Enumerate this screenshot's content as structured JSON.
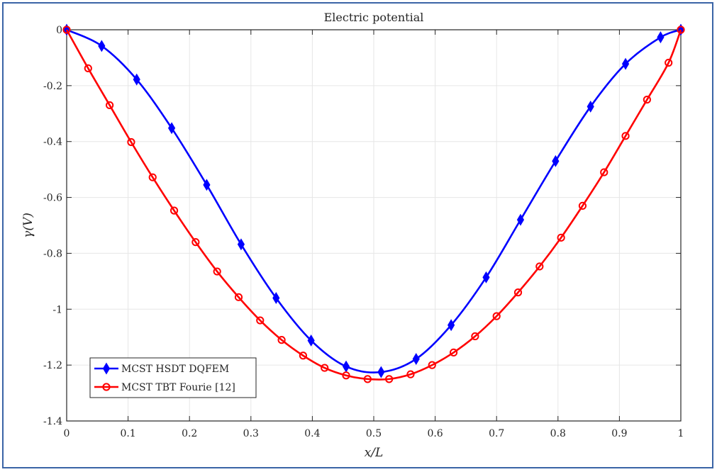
{
  "chart_data": {
    "type": "line",
    "title": "Electric potential",
    "xlabel": "x/L",
    "ylabel": "γ(V)",
    "xlim": [
      0,
      1
    ],
    "ylim": [
      -1.4,
      0
    ],
    "xticks": [
      "0",
      "0.1",
      "0.2",
      "0.3",
      "0.4",
      "0.5",
      "0.6",
      "0.7",
      "0.8",
      "0.9",
      "1"
    ],
    "yticks": [
      "0",
      "-0.2",
      "-0.4",
      "-0.6",
      "-0.8",
      "-1",
      "-1.2",
      "-1.4"
    ],
    "grid": true,
    "legend_position": "bottom-left",
    "series": [
      {
        "name": "MCST HSDT DQFEM",
        "color": "#0000ff",
        "marker": "diamond",
        "x": [
          0,
          0.057,
          0.114,
          0.171,
          0.228,
          0.284,
          0.341,
          0.398,
          0.455,
          0.512,
          0.569,
          0.626,
          0.683,
          0.739,
          0.796,
          0.853,
          0.91,
          0.967,
          1
        ],
        "y": [
          0,
          -0.058,
          -0.178,
          -0.352,
          -0.555,
          -0.768,
          -0.96,
          -1.112,
          -1.205,
          -1.225,
          -1.178,
          -1.057,
          -0.886,
          -0.68,
          -0.47,
          -0.275,
          -0.122,
          -0.027,
          0
        ]
      },
      {
        "name": "MCST TBT Fourie [12]",
        "color": "#ff0000",
        "marker": "circle",
        "x": [
          0,
          0.035,
          0.07,
          0.105,
          0.14,
          0.175,
          0.21,
          0.245,
          0.28,
          0.315,
          0.35,
          0.385,
          0.42,
          0.455,
          0.49,
          0.525,
          0.56,
          0.595,
          0.63,
          0.665,
          0.7,
          0.735,
          0.77,
          0.805,
          0.84,
          0.875,
          0.91,
          0.945,
          0.98,
          1
        ],
        "y": [
          0,
          -0.138,
          -0.27,
          -0.402,
          -0.528,
          -0.647,
          -0.76,
          -0.865,
          -0.957,
          -1.04,
          -1.11,
          -1.166,
          -1.21,
          -1.237,
          -1.25,
          -1.25,
          -1.233,
          -1.2,
          -1.155,
          -1.097,
          -1.025,
          -0.94,
          -0.847,
          -0.744,
          -0.63,
          -0.51,
          -0.38,
          -0.25,
          -0.118,
          0
        ]
      }
    ]
  }
}
